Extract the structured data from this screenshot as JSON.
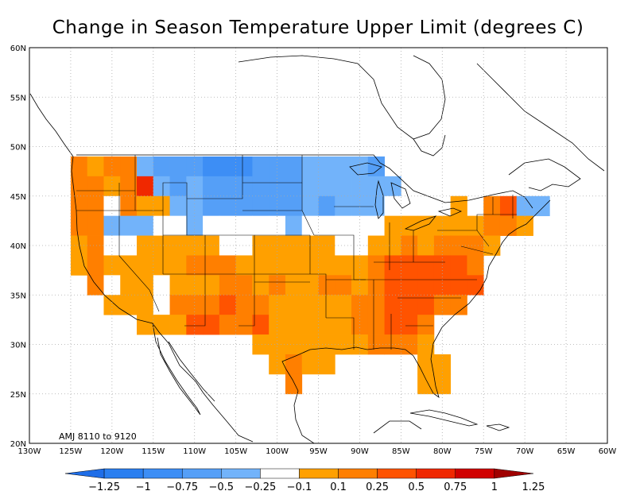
{
  "title": "Change in Season Temperature Upper Limit (degrees C)",
  "period_label": "AMJ 8110  to  9120",
  "map": {
    "lon_range": [
      -130,
      -60
    ],
    "lat_range": [
      20,
      60
    ],
    "lon_ticks": [
      "130W",
      "125W",
      "120W",
      "115W",
      "110W",
      "105W",
      "100W",
      "95W",
      "90W",
      "85W",
      "80W",
      "75W",
      "70W",
      "65W",
      "60W"
    ],
    "lat_ticks": [
      "20N",
      "25N",
      "30N",
      "35N",
      "40N",
      "45N",
      "50N",
      "55N",
      "60N"
    ],
    "grid": true,
    "grid_spacing_deg": 5,
    "cell_size_deg": 2
  },
  "colorbar": {
    "labels": [
      "-1.25",
      "-1",
      "-0.75",
      "-0.5",
      "-0.25",
      "-0.1",
      "0.1",
      "0.25",
      "0.5",
      "0.75",
      "1",
      "1.25"
    ],
    "colors": [
      "#1f6ee8",
      "#2a7ff0",
      "#3d8ef5",
      "#559ff7",
      "#72b3fa",
      "#ffffff",
      "#ffa000",
      "#ff7f00",
      "#ff5300",
      "#f02800",
      "#d00000",
      "#a00000"
    ]
  },
  "chart_data": {
    "type": "heatmap",
    "title": "Change in Season Temperature Upper Limit (degrees C)",
    "classes": [
      "-1.25",
      "-1",
      "-0.75",
      "-0.5",
      "-0.25",
      "-0.1",
      "0.1",
      "0.25",
      "0.5",
      "0.75",
      "1",
      "1.25"
    ],
    "cells": [
      {
        "lon": -124,
        "lat": 48,
        "c": "#ff7f00"
      },
      {
        "lon": -122,
        "lat": 48,
        "c": "#ffa000"
      },
      {
        "lon": -120,
        "lat": 48,
        "c": "#ff7f00"
      },
      {
        "lon": -118,
        "lat": 48,
        "c": "#ff7f00"
      },
      {
        "lon": -116,
        "lat": 48,
        "c": "#72b3fa"
      },
      {
        "lon": -114,
        "lat": 48,
        "c": "#559ff7"
      },
      {
        "lon": -112,
        "lat": 48,
        "c": "#559ff7"
      },
      {
        "lon": -110,
        "lat": 48,
        "c": "#559ff7"
      },
      {
        "lon": -108,
        "lat": 48,
        "c": "#3d8ef5"
      },
      {
        "lon": -106,
        "lat": 48,
        "c": "#3d8ef5"
      },
      {
        "lon": -104,
        "lat": 48,
        "c": "#3d8ef5"
      },
      {
        "lon": -102,
        "lat": 48,
        "c": "#559ff7"
      },
      {
        "lon": -100,
        "lat": 48,
        "c": "#559ff7"
      },
      {
        "lon": -98,
        "lat": 48,
        "c": "#559ff7"
      },
      {
        "lon": -96,
        "lat": 48,
        "c": "#72b3fa"
      },
      {
        "lon": -94,
        "lat": 48,
        "c": "#72b3fa"
      },
      {
        "lon": -92,
        "lat": 48,
        "c": "#72b3fa"
      },
      {
        "lon": -90,
        "lat": 48,
        "c": "#72b3fa"
      },
      {
        "lon": -88,
        "lat": 48,
        "c": "#559ff7"
      },
      {
        "lon": -124,
        "lat": 46,
        "c": "#ff7f00"
      },
      {
        "lon": -122,
        "lat": 46,
        "c": "#ff7f00"
      },
      {
        "lon": -120,
        "lat": 46,
        "c": "#ffa000"
      },
      {
        "lon": -118,
        "lat": 46,
        "c": "#ff7f00"
      },
      {
        "lon": -116,
        "lat": 46,
        "c": "#f02800"
      },
      {
        "lon": -114,
        "lat": 46,
        "c": "#72b3fa"
      },
      {
        "lon": -112,
        "lat": 46,
        "c": "#559ff7"
      },
      {
        "lon": -110,
        "lat": 46,
        "c": "#72b3fa"
      },
      {
        "lon": -108,
        "lat": 46,
        "c": "#559ff7"
      },
      {
        "lon": -106,
        "lat": 46,
        "c": "#559ff7"
      },
      {
        "lon": -104,
        "lat": 46,
        "c": "#559ff7"
      },
      {
        "lon": -102,
        "lat": 46,
        "c": "#559ff7"
      },
      {
        "lon": -100,
        "lat": 46,
        "c": "#559ff7"
      },
      {
        "lon": -98,
        "lat": 46,
        "c": "#559ff7"
      },
      {
        "lon": -96,
        "lat": 46,
        "c": "#72b3fa"
      },
      {
        "lon": -94,
        "lat": 46,
        "c": "#72b3fa"
      },
      {
        "lon": -92,
        "lat": 46,
        "c": "#72b3fa"
      },
      {
        "lon": -90,
        "lat": 46,
        "c": "#72b3fa"
      },
      {
        "lon": -88,
        "lat": 46,
        "c": "#72b3fa"
      },
      {
        "lon": -86,
        "lat": 46,
        "c": "#72b3fa"
      },
      {
        "lon": -124,
        "lat": 44,
        "c": "#ff7f00"
      },
      {
        "lon": -122,
        "lat": 44,
        "c": "#ff7f00"
      },
      {
        "lon": -120,
        "lat": 44,
        "c": "#ffffff"
      },
      {
        "lon": -118,
        "lat": 44,
        "c": "#ff7f00"
      },
      {
        "lon": -116,
        "lat": 44,
        "c": "#ffa000"
      },
      {
        "lon": -114,
        "lat": 44,
        "c": "#ffa000"
      },
      {
        "lon": -112,
        "lat": 44,
        "c": "#72b3fa"
      },
      {
        "lon": -110,
        "lat": 44,
        "c": "#72b3fa"
      },
      {
        "lon": -108,
        "lat": 44,
        "c": "#559ff7"
      },
      {
        "lon": -106,
        "lat": 44,
        "c": "#559ff7"
      },
      {
        "lon": -104,
        "lat": 44,
        "c": "#559ff7"
      },
      {
        "lon": -102,
        "lat": 44,
        "c": "#559ff7"
      },
      {
        "lon": -100,
        "lat": 44,
        "c": "#559ff7"
      },
      {
        "lon": -98,
        "lat": 44,
        "c": "#559ff7"
      },
      {
        "lon": -96,
        "lat": 44,
        "c": "#72b3fa"
      },
      {
        "lon": -94,
        "lat": 44,
        "c": "#559ff7"
      },
      {
        "lon": -92,
        "lat": 44,
        "c": "#72b3fa"
      },
      {
        "lon": -90,
        "lat": 44,
        "c": "#72b3fa"
      },
      {
        "lon": -88,
        "lat": 44,
        "c": "#72b3fa"
      },
      {
        "lon": -86,
        "lat": 44,
        "c": "#ffffff"
      },
      {
        "lon": -78,
        "lat": 44,
        "c": "#ffa000"
      },
      {
        "lon": -74,
        "lat": 44,
        "c": "#ff7f00"
      },
      {
        "lon": -72,
        "lat": 44,
        "c": "#ff5300"
      },
      {
        "lon": -70,
        "lat": 44,
        "c": "#72b3fa"
      },
      {
        "lon": -68,
        "lat": 44,
        "c": "#72b3fa"
      },
      {
        "lon": -124,
        "lat": 42,
        "c": "#ff7f00"
      },
      {
        "lon": -122,
        "lat": 42,
        "c": "#ff7f00"
      },
      {
        "lon": -120,
        "lat": 42,
        "c": "#72b3fa"
      },
      {
        "lon": -118,
        "lat": 42,
        "c": "#72b3fa"
      },
      {
        "lon": -116,
        "lat": 42,
        "c": "#72b3fa"
      },
      {
        "lon": -114,
        "lat": 42,
        "c": "#ffffff"
      },
      {
        "lon": -112,
        "lat": 42,
        "c": "#ffffff"
      },
      {
        "lon": -110,
        "lat": 42,
        "c": "#72b3fa"
      },
      {
        "lon": -108,
        "lat": 42,
        "c": "#ffffff"
      },
      {
        "lon": -106,
        "lat": 42,
        "c": "#ffffff"
      },
      {
        "lon": -104,
        "lat": 42,
        "c": "#ffffff"
      },
      {
        "lon": -102,
        "lat": 42,
        "c": "#ffffff"
      },
      {
        "lon": -100,
        "lat": 42,
        "c": "#ffffff"
      },
      {
        "lon": -98,
        "lat": 42,
        "c": "#72b3fa"
      },
      {
        "lon": -96,
        "lat": 42,
        "c": "#ffffff"
      },
      {
        "lon": -94,
        "lat": 42,
        "c": "#ffffff"
      },
      {
        "lon": -92,
        "lat": 42,
        "c": "#ffffff"
      },
      {
        "lon": -90,
        "lat": 42,
        "c": "#ffffff"
      },
      {
        "lon": -88,
        "lat": 42,
        "c": "#ffffff"
      },
      {
        "lon": -86,
        "lat": 42,
        "c": "#ffa000"
      },
      {
        "lon": -84,
        "lat": 42,
        "c": "#ffa000"
      },
      {
        "lon": -82,
        "lat": 42,
        "c": "#ffa000"
      },
      {
        "lon": -80,
        "lat": 42,
        "c": "#ffa000"
      },
      {
        "lon": -78,
        "lat": 42,
        "c": "#ffa000"
      },
      {
        "lon": -76,
        "lat": 42,
        "c": "#ffa000"
      },
      {
        "lon": -74,
        "lat": 42,
        "c": "#ff7f00"
      },
      {
        "lon": -72,
        "lat": 42,
        "c": "#ff7f00"
      },
      {
        "lon": -70,
        "lat": 42,
        "c": "#ffa000"
      },
      {
        "lon": -124,
        "lat": 40,
        "c": "#ffa000"
      },
      {
        "lon": -122,
        "lat": 40,
        "c": "#ff7f00"
      },
      {
        "lon": -120,
        "lat": 40,
        "c": "#ffffff"
      },
      {
        "lon": -118,
        "lat": 40,
        "c": "#ffffff"
      },
      {
        "lon": -116,
        "lat": 40,
        "c": "#ffa000"
      },
      {
        "lon": -114,
        "lat": 40,
        "c": "#ffa000"
      },
      {
        "lon": -112,
        "lat": 40,
        "c": "#ffa000"
      },
      {
        "lon": -110,
        "lat": 40,
        "c": "#ffa000"
      },
      {
        "lon": -108,
        "lat": 40,
        "c": "#ffa000"
      },
      {
        "lon": -106,
        "lat": 40,
        "c": "#ffffff"
      },
      {
        "lon": -104,
        "lat": 40,
        "c": "#ffffff"
      },
      {
        "lon": -102,
        "lat": 40,
        "c": "#ffa000"
      },
      {
        "lon": -100,
        "lat": 40,
        "c": "#ffa000"
      },
      {
        "lon": -98,
        "lat": 40,
        "c": "#ffa000"
      },
      {
        "lon": -96,
        "lat": 40,
        "c": "#ffa000"
      },
      {
        "lon": -94,
        "lat": 40,
        "c": "#ffa000"
      },
      {
        "lon": -92,
        "lat": 40,
        "c": "#ffffff"
      },
      {
        "lon": -90,
        "lat": 40,
        "c": "#ffffff"
      },
      {
        "lon": -88,
        "lat": 40,
        "c": "#ffa000"
      },
      {
        "lon": -86,
        "lat": 40,
        "c": "#ffa000"
      },
      {
        "lon": -84,
        "lat": 40,
        "c": "#ff7f00"
      },
      {
        "lon": -82,
        "lat": 40,
        "c": "#ffa000"
      },
      {
        "lon": -80,
        "lat": 40,
        "c": "#ff7f00"
      },
      {
        "lon": -78,
        "lat": 40,
        "c": "#ff7f00"
      },
      {
        "lon": -76,
        "lat": 40,
        "c": "#ff7f00"
      },
      {
        "lon": -74,
        "lat": 40,
        "c": "#ffa000"
      },
      {
        "lon": -124,
        "lat": 38,
        "c": "#ffa000"
      },
      {
        "lon": -122,
        "lat": 38,
        "c": "#ff7f00"
      },
      {
        "lon": -120,
        "lat": 38,
        "c": "#ffa000"
      },
      {
        "lon": -118,
        "lat": 38,
        "c": "#ffa000"
      },
      {
        "lon": -116,
        "lat": 38,
        "c": "#ffa000"
      },
      {
        "lon": -114,
        "lat": 38,
        "c": "#ffa000"
      },
      {
        "lon": -112,
        "lat": 38,
        "c": "#ffa000"
      },
      {
        "lon": -110,
        "lat": 38,
        "c": "#ff7f00"
      },
      {
        "lon": -108,
        "lat": 38,
        "c": "#ff7f00"
      },
      {
        "lon": -106,
        "lat": 38,
        "c": "#ff7f00"
      },
      {
        "lon": -104,
        "lat": 38,
        "c": "#ffa000"
      },
      {
        "lon": -102,
        "lat": 38,
        "c": "#ffa000"
      },
      {
        "lon": -100,
        "lat": 38,
        "c": "#ffa000"
      },
      {
        "lon": -98,
        "lat": 38,
        "c": "#ffa000"
      },
      {
        "lon": -96,
        "lat": 38,
        "c": "#ffa000"
      },
      {
        "lon": -94,
        "lat": 38,
        "c": "#ffa000"
      },
      {
        "lon": -92,
        "lat": 38,
        "c": "#ffa000"
      },
      {
        "lon": -90,
        "lat": 38,
        "c": "#ffa000"
      },
      {
        "lon": -88,
        "lat": 38,
        "c": "#ff7f00"
      },
      {
        "lon": -86,
        "lat": 38,
        "c": "#ff5300"
      },
      {
        "lon": -84,
        "lat": 38,
        "c": "#ff5300"
      },
      {
        "lon": -82,
        "lat": 38,
        "c": "#ff5300"
      },
      {
        "lon": -80,
        "lat": 38,
        "c": "#ff5300"
      },
      {
        "lon": -78,
        "lat": 38,
        "c": "#ff5300"
      },
      {
        "lon": -76,
        "lat": 38,
        "c": "#ff7f00"
      },
      {
        "lon": -122,
        "lat": 36,
        "c": "#ff7f00"
      },
      {
        "lon": -120,
        "lat": 36,
        "c": "#ffffff"
      },
      {
        "lon": -118,
        "lat": 36,
        "c": "#ffa000"
      },
      {
        "lon": -116,
        "lat": 36,
        "c": "#ffa000"
      },
      {
        "lon": -114,
        "lat": 36,
        "c": "#ffffff"
      },
      {
        "lon": -112,
        "lat": 36,
        "c": "#ffa000"
      },
      {
        "lon": -110,
        "lat": 36,
        "c": "#ffa000"
      },
      {
        "lon": -108,
        "lat": 36,
        "c": "#ffa000"
      },
      {
        "lon": -106,
        "lat": 36,
        "c": "#ff7f00"
      },
      {
        "lon": -104,
        "lat": 36,
        "c": "#ff7f00"
      },
      {
        "lon": -102,
        "lat": 36,
        "c": "#ffa000"
      },
      {
        "lon": -100,
        "lat": 36,
        "c": "#ff7f00"
      },
      {
        "lon": -98,
        "lat": 36,
        "c": "#ffa000"
      },
      {
        "lon": -96,
        "lat": 36,
        "c": "#ffa000"
      },
      {
        "lon": -94,
        "lat": 36,
        "c": "#ff7f00"
      },
      {
        "lon": -92,
        "lat": 36,
        "c": "#ff7f00"
      },
      {
        "lon": -90,
        "lat": 36,
        "c": "#ffa000"
      },
      {
        "lon": -88,
        "lat": 36,
        "c": "#ff7f00"
      },
      {
        "lon": -86,
        "lat": 36,
        "c": "#ff5300"
      },
      {
        "lon": -84,
        "lat": 36,
        "c": "#ff5300"
      },
      {
        "lon": -82,
        "lat": 36,
        "c": "#ff5300"
      },
      {
        "lon": -80,
        "lat": 36,
        "c": "#ff5300"
      },
      {
        "lon": -78,
        "lat": 36,
        "c": "#ff5300"
      },
      {
        "lon": -76,
        "lat": 36,
        "c": "#ff5300"
      },
      {
        "lon": -120,
        "lat": 34,
        "c": "#ffa000"
      },
      {
        "lon": -118,
        "lat": 34,
        "c": "#ffa000"
      },
      {
        "lon": -116,
        "lat": 34,
        "c": "#ffa000"
      },
      {
        "lon": -114,
        "lat": 34,
        "c": "#ffffff"
      },
      {
        "lon": -112,
        "lat": 34,
        "c": "#ff7f00"
      },
      {
        "lon": -110,
        "lat": 34,
        "c": "#ff7f00"
      },
      {
        "lon": -108,
        "lat": 34,
        "c": "#ff7f00"
      },
      {
        "lon": -106,
        "lat": 34,
        "c": "#ff5300"
      },
      {
        "lon": -104,
        "lat": 34,
        "c": "#ff7f00"
      },
      {
        "lon": -102,
        "lat": 34,
        "c": "#ff7f00"
      },
      {
        "lon": -100,
        "lat": 34,
        "c": "#ffa000"
      },
      {
        "lon": -98,
        "lat": 34,
        "c": "#ffa000"
      },
      {
        "lon": -96,
        "lat": 34,
        "c": "#ffa000"
      },
      {
        "lon": -94,
        "lat": 34,
        "c": "#ffa000"
      },
      {
        "lon": -92,
        "lat": 34,
        "c": "#ffa000"
      },
      {
        "lon": -90,
        "lat": 34,
        "c": "#ff7f00"
      },
      {
        "lon": -88,
        "lat": 34,
        "c": "#ff7f00"
      },
      {
        "lon": -86,
        "lat": 34,
        "c": "#ff5300"
      },
      {
        "lon": -84,
        "lat": 34,
        "c": "#ff5300"
      },
      {
        "lon": -82,
        "lat": 34,
        "c": "#ff5300"
      },
      {
        "lon": -80,
        "lat": 34,
        "c": "#ff7f00"
      },
      {
        "lon": -78,
        "lat": 34,
        "c": "#ff7f00"
      },
      {
        "lon": -116,
        "lat": 32,
        "c": "#ffa000"
      },
      {
        "lon": -114,
        "lat": 32,
        "c": "#ffa000"
      },
      {
        "lon": -112,
        "lat": 32,
        "c": "#ffa000"
      },
      {
        "lon": -110,
        "lat": 32,
        "c": "#ff5300"
      },
      {
        "lon": -108,
        "lat": 32,
        "c": "#ff5300"
      },
      {
        "lon": -106,
        "lat": 32,
        "c": "#ff7f00"
      },
      {
        "lon": -104,
        "lat": 32,
        "c": "#ff7f00"
      },
      {
        "lon": -102,
        "lat": 32,
        "c": "#ff5300"
      },
      {
        "lon": -100,
        "lat": 32,
        "c": "#ffa000"
      },
      {
        "lon": -98,
        "lat": 32,
        "c": "#ffa000"
      },
      {
        "lon": -96,
        "lat": 32,
        "c": "#ffa000"
      },
      {
        "lon": -94,
        "lat": 32,
        "c": "#ffa000"
      },
      {
        "lon": -92,
        "lat": 32,
        "c": "#ffa000"
      },
      {
        "lon": -90,
        "lat": 32,
        "c": "#ff7f00"
      },
      {
        "lon": -88,
        "lat": 32,
        "c": "#ff7f00"
      },
      {
        "lon": -86,
        "lat": 32,
        "c": "#ff5300"
      },
      {
        "lon": -84,
        "lat": 32,
        "c": "#ff5300"
      },
      {
        "lon": -82,
        "lat": 32,
        "c": "#ff7f00"
      },
      {
        "lon": -102,
        "lat": 30,
        "c": "#ffa000"
      },
      {
        "lon": -100,
        "lat": 30,
        "c": "#ffa000"
      },
      {
        "lon": -98,
        "lat": 30,
        "c": "#ffa000"
      },
      {
        "lon": -96,
        "lat": 30,
        "c": "#ffa000"
      },
      {
        "lon": -94,
        "lat": 30,
        "c": "#ffa000"
      },
      {
        "lon": -92,
        "lat": 30,
        "c": "#ffa000"
      },
      {
        "lon": -90,
        "lat": 30,
        "c": "#ffa000"
      },
      {
        "lon": -88,
        "lat": 30,
        "c": "#ff7f00"
      },
      {
        "lon": -86,
        "lat": 30,
        "c": "#ff7f00"
      },
      {
        "lon": -84,
        "lat": 30,
        "c": "#ff7f00"
      },
      {
        "lon": -82,
        "lat": 30,
        "c": "#ffa000"
      },
      {
        "lon": -100,
        "lat": 28,
        "c": "#ffa000"
      },
      {
        "lon": -98,
        "lat": 28,
        "c": "#ff7f00"
      },
      {
        "lon": -96,
        "lat": 28,
        "c": "#ffa000"
      },
      {
        "lon": -94,
        "lat": 28,
        "c": "#ffa000"
      },
      {
        "lon": -82,
        "lat": 28,
        "c": "#ffa000"
      },
      {
        "lon": -80,
        "lat": 28,
        "c": "#ffa000"
      },
      {
        "lon": -98,
        "lat": 26,
        "c": "#ff7f00"
      },
      {
        "lon": -82,
        "lat": 26,
        "c": "#ffa000"
      },
      {
        "lon": -80,
        "lat": 26,
        "c": "#ffa000"
      }
    ]
  }
}
